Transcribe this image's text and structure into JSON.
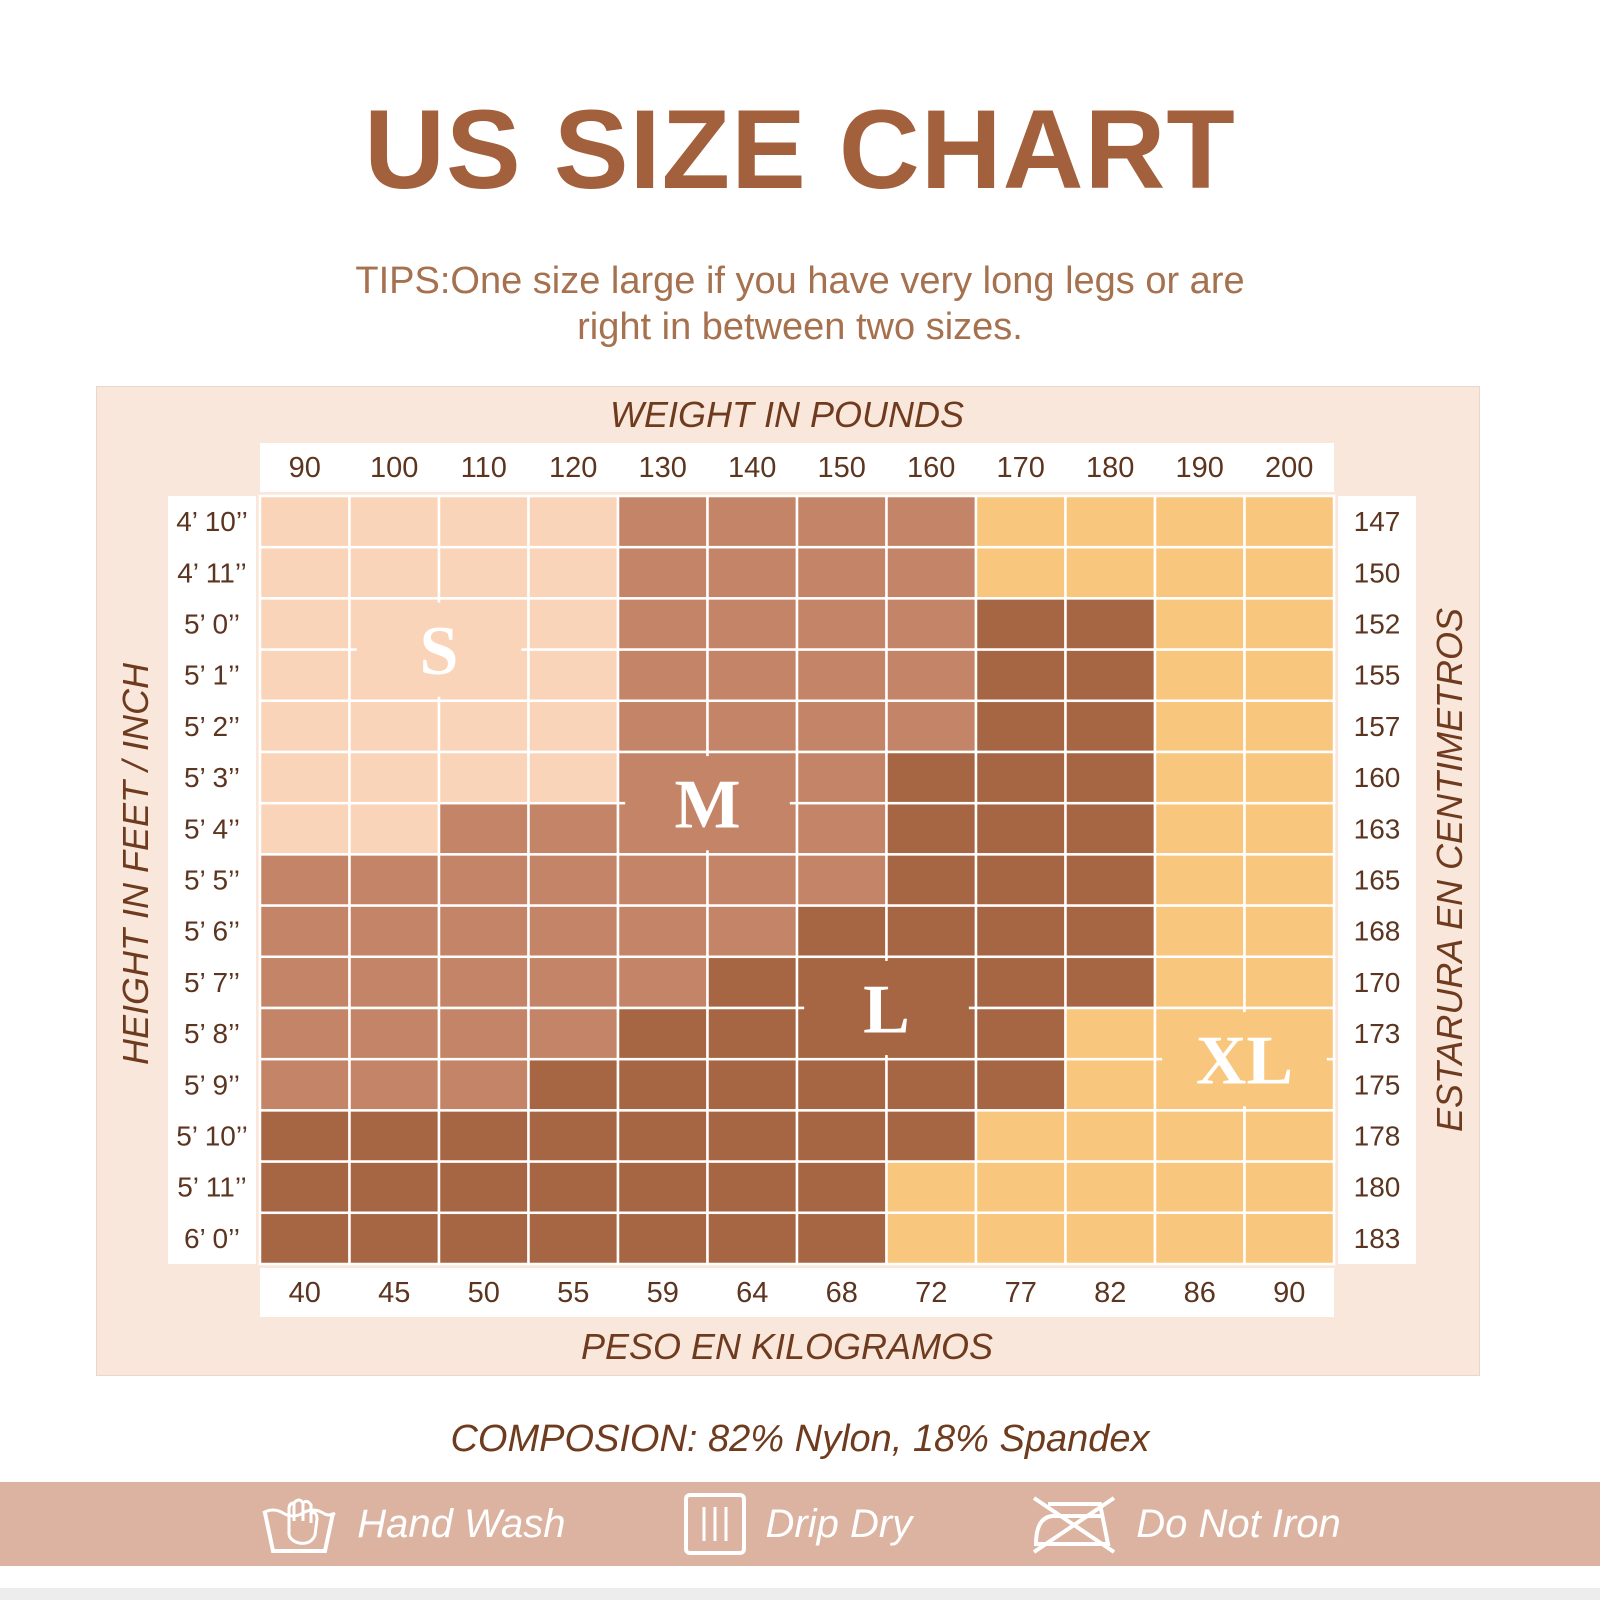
{
  "title": "US SIZE CHART",
  "tips": [
    "TIPS:One size large if you have very long legs or are",
    "right in between two sizes."
  ],
  "composition": "COMPOSION: 82% Nylon, 18% Spandex",
  "care": [
    {
      "icon": "hand-wash-icon",
      "label": "Hand Wash"
    },
    {
      "icon": "drip-dry-icon",
      "label": "Drip Dry"
    },
    {
      "icon": "do-not-iron-icon",
      "label": "Do Not Iron"
    }
  ],
  "colors": {
    "S": "#f9d4b9",
    "M": "#c48468",
    "L": "#a66543",
    "XL": "#f8c67d",
    "title": "#a3603c",
    "panel": "#fae7dc",
    "care_bar": "#dcb3a0"
  },
  "chart_data": {
    "type": "heatmap",
    "x_top_title": "WEIGHT IN POUNDS",
    "x_bottom_title": "PESO EN KILOGRAMOS",
    "y_left_title": "HEIGHT IN FEET / INCH",
    "y_right_title": "ESTARURA EN CENTIMETROS",
    "weights_lb": [
      "90",
      "100",
      "110",
      "120",
      "130",
      "140",
      "150",
      "160",
      "170",
      "180",
      "190",
      "200"
    ],
    "weights_kg": [
      "40",
      "45",
      "50",
      "55",
      "59",
      "64",
      "68",
      "72",
      "77",
      "82",
      "86",
      "90"
    ],
    "heights_ft": [
      "4’ 10’’",
      "4’ 11’’",
      "5’ 0’’",
      "5’ 1’’",
      "5’ 2’’",
      "5’ 3’’",
      "5’ 4’’",
      "5’ 5’’",
      "5’ 6’’",
      "5’ 7’’",
      "5’ 8’’",
      "5’ 9’’",
      "5’ 10’’",
      "5’ 11’’",
      "6’ 0’’"
    ],
    "heights_cm": [
      "147",
      "150",
      "152",
      "155",
      "157",
      "160",
      "163",
      "165",
      "168",
      "170",
      "173",
      "175",
      "178",
      "180",
      "183"
    ],
    "sizes": [
      "S",
      "M",
      "L",
      "XL"
    ],
    "grid": [
      [
        "S",
        "S",
        "S",
        "S",
        "M",
        "M",
        "M",
        "M",
        "XL",
        "XL",
        "XL",
        "XL"
      ],
      [
        "S",
        "S",
        "S",
        "S",
        "M",
        "M",
        "M",
        "M",
        "XL",
        "XL",
        "XL",
        "XL"
      ],
      [
        "S",
        "S",
        "S",
        "S",
        "M",
        "M",
        "M",
        "M",
        "L",
        "L",
        "XL",
        "XL"
      ],
      [
        "S",
        "S",
        "S",
        "S",
        "M",
        "M",
        "M",
        "M",
        "L",
        "L",
        "XL",
        "XL"
      ],
      [
        "S",
        "S",
        "S",
        "S",
        "M",
        "M",
        "M",
        "M",
        "L",
        "L",
        "XL",
        "XL"
      ],
      [
        "S",
        "S",
        "S",
        "S",
        "M",
        "M",
        "M",
        "L",
        "L",
        "L",
        "XL",
        "XL"
      ],
      [
        "S",
        "S",
        "M",
        "M",
        "M",
        "M",
        "M",
        "L",
        "L",
        "L",
        "XL",
        "XL"
      ],
      [
        "M",
        "M",
        "M",
        "M",
        "M",
        "M",
        "M",
        "L",
        "L",
        "L",
        "XL",
        "XL"
      ],
      [
        "M",
        "M",
        "M",
        "M",
        "M",
        "M",
        "L",
        "L",
        "L",
        "L",
        "XL",
        "XL"
      ],
      [
        "M",
        "M",
        "M",
        "M",
        "M",
        "L",
        "L",
        "L",
        "L",
        "L",
        "XL",
        "XL"
      ],
      [
        "M",
        "M",
        "M",
        "M",
        "L",
        "L",
        "L",
        "L",
        "L",
        "XL",
        "XL",
        "XL"
      ],
      [
        "M",
        "M",
        "M",
        "L",
        "L",
        "L",
        "L",
        "L",
        "L",
        "XL",
        "XL",
        "XL"
      ],
      [
        "L",
        "L",
        "L",
        "L",
        "L",
        "L",
        "L",
        "L",
        "XL",
        "XL",
        "XL",
        "XL"
      ],
      [
        "L",
        "L",
        "L",
        "L",
        "L",
        "L",
        "L",
        "XL",
        "XL",
        "XL",
        "XL",
        "XL"
      ],
      [
        "L",
        "L",
        "L",
        "L",
        "L",
        "L",
        "L",
        "XL",
        "XL",
        "XL",
        "XL",
        "XL"
      ]
    ],
    "region_labels": [
      {
        "text": "S",
        "row": 2.5,
        "col": 1.5
      },
      {
        "text": "M",
        "row": 5.5,
        "col": 4.5
      },
      {
        "text": "L",
        "row": 9.5,
        "col": 6.5
      },
      {
        "text": "XL",
        "row": 10.5,
        "col": 10.5
      }
    ]
  }
}
